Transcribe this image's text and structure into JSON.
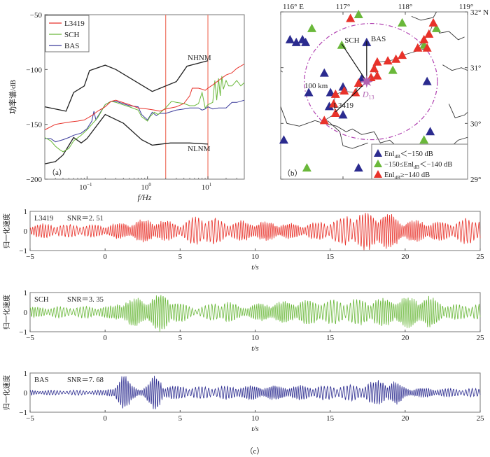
{
  "chart_data": [
    {
      "id": "a",
      "type": "line",
      "panel_label": "（a）",
      "xlabel": "f/Hz",
      "ylabel": "功率谱/dB",
      "xscale": "log",
      "xlim": [
        0.02,
        40
      ],
      "ylim": [
        -200,
        -50
      ],
      "yticks": [
        -50,
        -100,
        -150,
        -200
      ],
      "ytick_labels": [
        "−50",
        "−100",
        "−150",
        "−200"
      ],
      "xticks": [
        0.1,
        1,
        10
      ],
      "xtick_labels": [
        "10",
        "10",
        "10"
      ],
      "xtick_exps": [
        "−1",
        "0",
        "1"
      ],
      "legend": [
        "L3419",
        "SCH",
        "BAS"
      ],
      "legend_position": "top-left",
      "vlines": [
        2,
        10
      ],
      "annotations": [
        "NHNM",
        "NLNM"
      ],
      "series": [
        {
          "name": "L3419",
          "color": "#e8322a",
          "x": [
            0.02,
            0.03,
            0.05,
            0.07,
            0.09,
            0.12,
            0.15,
            0.2,
            0.25,
            0.3,
            0.5,
            0.7,
            1,
            1.3,
            1.6,
            2,
            3,
            4,
            5,
            5.5,
            7,
            8,
            9,
            10,
            12,
            15,
            20,
            25,
            30,
            40
          ],
          "y": [
            -155,
            -150,
            -148,
            -147,
            -146,
            -142,
            -138,
            -134,
            -129,
            -128,
            -132,
            -135,
            -136,
            -137,
            -138,
            -136,
            -134,
            -131,
            -124,
            -117,
            -117,
            -118,
            -119,
            -117,
            -114,
            -110,
            -105,
            -103,
            -99,
            -95
          ]
        },
        {
          "name": "SCH",
          "color": "#6ab83a",
          "x": [
            0.02,
            0.025,
            0.03,
            0.035,
            0.04,
            0.05,
            0.06,
            0.08,
            0.1,
            0.12,
            0.15,
            0.2,
            0.25,
            0.3,
            0.5,
            0.7,
            0.8,
            1,
            1.1,
            1.3,
            1.5,
            2,
            2.5,
            3,
            4,
            5,
            6,
            7,
            8,
            9,
            10,
            12,
            13,
            14,
            15,
            16,
            17,
            18,
            20,
            22,
            25,
            30,
            35,
            40
          ],
          "y": [
            -162,
            -165,
            -170,
            -173,
            -175,
            -172,
            -165,
            -160,
            -155,
            -150,
            -144,
            -132,
            -129,
            -130,
            -134,
            -137,
            -143,
            -147,
            -143,
            -139,
            -141,
            -135,
            -129,
            -130,
            -131,
            -133,
            -133,
            -131,
            -121,
            -135,
            -132,
            -130,
            -110,
            -128,
            -108,
            -124,
            -106,
            -118,
            -110,
            -115,
            -115,
            -110,
            -115,
            -112
          ]
        },
        {
          "name": "BAS",
          "color": "#3a3a9a",
          "x": [
            0.02,
            0.025,
            0.03,
            0.04,
            0.05,
            0.06,
            0.08,
            0.1,
            0.12,
            0.13,
            0.14,
            0.15,
            0.2,
            0.25,
            0.3,
            0.5,
            0.7,
            0.8,
            1,
            1.2,
            1.4,
            1.6,
            2,
            3,
            4,
            5,
            7,
            8,
            9,
            10,
            12,
            15,
            20,
            25,
            30,
            40
          ],
          "y": [
            -163,
            -163,
            -166,
            -164,
            -162,
            -160,
            -158,
            -154,
            -147,
            -138,
            -146,
            -143,
            -132,
            -129,
            -129,
            -133,
            -134,
            -141,
            -146,
            -139,
            -142,
            -140,
            -140,
            -137,
            -136,
            -135,
            -135,
            -137,
            -136,
            -134,
            -136,
            -135,
            -135,
            -130,
            -130,
            -128
          ]
        },
        {
          "name": "NHNM",
          "color": "#222222",
          "x": [
            0.02,
            0.045,
            0.06,
            0.09,
            0.11,
            0.2,
            0.3,
            1.2,
            3,
            4.5,
            10
          ],
          "y": [
            -134,
            -138,
            -121,
            -115,
            -101,
            -96,
            -100,
            -120,
            -111,
            -97,
            -92
          ]
        },
        {
          "name": "NLNM",
          "color": "#222222",
          "x": [
            0.02,
            0.03,
            0.04,
            0.06,
            0.08,
            0.1,
            0.2,
            0.4,
            0.8,
            1.2,
            2.4,
            5,
            10
          ],
          "y": [
            -186,
            -184,
            -178,
            -162,
            -167,
            -163,
            -141,
            -149,
            -164,
            -169,
            -167,
            -167,
            -168
          ]
        }
      ]
    },
    {
      "id": "b",
      "type": "scatter",
      "panel_label": "（b）",
      "xlim": [
        116,
        119
      ],
      "ylim": [
        29,
        32
      ],
      "xtick_labels": [
        "116° E",
        "117°",
        "118°",
        "119°"
      ],
      "ytick_labels": [
        "32° N",
        "31°",
        "30°",
        "29°"
      ],
      "epicenter": {
        "label": "D",
        "sub": "13",
        "lon": 117.38,
        "lat": 30.75,
        "color": "#b060b0"
      },
      "radius_label": "100 km",
      "circle_color": "#b040b0",
      "legend": [
        {
          "label_pre": "Enl",
          "sub": "dB",
          "label_post": "＜−150 dB",
          "color": "#2b2b8f"
        },
        {
          "label_pre": "−150≤Enl",
          "sub": "dB",
          "label_post": "＜−140 dB",
          "color": "#6ab83a"
        },
        {
          "label_pre": "Enl",
          "sub": "dB",
          "label_post": "≥−140 dB",
          "color": "#e8322a"
        }
      ],
      "legend_position": "bottom-right",
      "stations_blue": [
        [
          116.15,
          31.5
        ],
        [
          116.25,
          31.45
        ],
        [
          116.35,
          31.5
        ],
        [
          116.4,
          31.45
        ],
        [
          116.7,
          30.9
        ],
        [
          116.45,
          30.55
        ],
        [
          116.8,
          30.55
        ],
        [
          116.78,
          30.3
        ],
        [
          117.0,
          30.65
        ],
        [
          117.0,
          30.15
        ],
        [
          117.3,
          30.8
        ],
        [
          117.38,
          31.45
        ],
        [
          118.35,
          30.75
        ],
        [
          118.4,
          29.85
        ],
        [
          116.05,
          29.7
        ],
        [
          117.25,
          29.2
        ]
      ],
      "stations_green": [
        [
          116.5,
          31.7
        ],
        [
          117.25,
          31.95
        ],
        [
          117.95,
          31.8
        ],
        [
          118.5,
          31.7
        ],
        [
          116.98,
          31.4
        ],
        [
          117.8,
          30.95
        ],
        [
          118.3,
          31.4
        ],
        [
          118.3,
          29.7
        ],
        [
          116.42,
          29.2
        ]
      ],
      "stations_red": [
        [
          117.12,
          31.88
        ],
        [
          118.45,
          31.8
        ],
        [
          118.38,
          31.6
        ],
        [
          118.3,
          31.5
        ],
        [
          118.2,
          31.35
        ],
        [
          118.35,
          31.35
        ],
        [
          117.95,
          31.22
        ],
        [
          117.85,
          31.15
        ],
        [
          117.72,
          31.12
        ],
        [
          117.55,
          31.1
        ],
        [
          117.5,
          30.98
        ],
        [
          117.55,
          30.85
        ],
        [
          117.45,
          30.82
        ],
        [
          117.25,
          30.72
        ],
        [
          117.2,
          30.55
        ],
        [
          117.02,
          30.58
        ],
        [
          116.88,
          30.52
        ],
        [
          116.85,
          30.35
        ],
        [
          116.88,
          30.18
        ],
        [
          116.7,
          30.05
        ]
      ],
      "rays": [
        {
          "label": "BAS",
          "lon": 117.38,
          "lat": 31.45
        },
        {
          "label": "SCH",
          "lon": 116.98,
          "lat": 31.4
        },
        {
          "label": "L3419",
          "lon": 116.88,
          "lat": 30.18
        }
      ]
    },
    {
      "id": "c1",
      "type": "line",
      "station": "L3419",
      "snr_text": "SNR＝2. 51",
      "color": "#e8322a",
      "xlabel": "t/s",
      "ylabel": "归一化速度",
      "xlim": [
        -5,
        25
      ],
      "ylim": [
        -1,
        1
      ],
      "xticks": [
        -5,
        0,
        5,
        10,
        15,
        20,
        25
      ],
      "xtick_labels": [
        "−5",
        "0",
        "5",
        "10",
        "15",
        "20",
        "25"
      ],
      "yticks": [
        1,
        0,
        -1
      ],
      "ytick_labels": [
        "1",
        "0",
        "−1"
      ],
      "envelope": [
        [
          -5,
          0.35
        ],
        [
          0,
          0.3
        ],
        [
          1,
          0.4
        ],
        [
          3,
          0.6
        ],
        [
          5,
          0.4
        ],
        [
          6.5,
          0.85
        ],
        [
          8,
          0.45
        ],
        [
          10,
          0.5
        ],
        [
          13,
          0.35
        ],
        [
          15,
          0.5
        ],
        [
          16.5,
          0.9
        ],
        [
          18.5,
          1.0
        ],
        [
          20,
          0.55
        ],
        [
          23,
          0.45
        ],
        [
          25,
          0.75
        ]
      ]
    },
    {
      "id": "c2",
      "type": "line",
      "station": "SCH",
      "snr_text": "SNR＝3. 35",
      "color": "#6ab83a",
      "xlabel": "t/s",
      "ylabel": "归一化速度",
      "xlim": [
        -5,
        25
      ],
      "ylim": [
        -1,
        1
      ],
      "xticks": [
        -5,
        0,
        5,
        10,
        15,
        20,
        25
      ],
      "xtick_labels": [
        "−5",
        "0",
        "5",
        "10",
        "15",
        "20",
        "25"
      ],
      "yticks": [
        1,
        0,
        -1
      ],
      "ytick_labels": [
        "1",
        "0",
        "−1"
      ],
      "envelope": [
        [
          -5,
          0.25
        ],
        [
          0.5,
          0.3
        ],
        [
          1,
          0.6
        ],
        [
          3,
          0.75
        ],
        [
          4,
          1.0
        ],
        [
          5,
          0.5
        ],
        [
          6,
          0.2
        ],
        [
          8,
          0.6
        ],
        [
          9,
          0.3
        ],
        [
          11,
          0.5
        ],
        [
          13,
          0.6
        ],
        [
          16,
          0.6
        ],
        [
          18.5,
          0.7
        ],
        [
          21.5,
          0.8
        ],
        [
          23,
          0.35
        ],
        [
          25,
          0.4
        ]
      ]
    },
    {
      "id": "c3",
      "type": "line",
      "station": "BAS",
      "snr_text": "SNR＝7. 68",
      "color": "#2b2b8f",
      "xlabel": "t/s",
      "ylabel": "归一化速度",
      "xlim": [
        -5,
        25
      ],
      "ylim": [
        -1,
        1
      ],
      "xticks": [
        -5,
        0,
        5,
        10,
        15,
        20,
        25
      ],
      "xtick_labels": [
        "−5",
        "0",
        "5",
        "10",
        "15",
        "20",
        "25"
      ],
      "yticks": [
        1,
        0,
        -1
      ],
      "ytick_labels": [
        "1",
        "0",
        "−1"
      ],
      "panel_label": "（c）",
      "envelope": [
        [
          -5,
          0.12
        ],
        [
          0,
          0.12
        ],
        [
          0.5,
          0.3
        ],
        [
          1.2,
          0.95
        ],
        [
          1.8,
          0.4
        ],
        [
          2.5,
          0.2
        ],
        [
          3.5,
          1.0
        ],
        [
          4,
          0.35
        ],
        [
          6,
          0.3
        ],
        [
          10,
          0.35
        ],
        [
          15,
          0.35
        ],
        [
          17,
          0.4
        ],
        [
          18.5,
          0.65
        ],
        [
          19.5,
          0.55
        ],
        [
          20,
          0.25
        ],
        [
          23,
          0.2
        ],
        [
          25,
          0.2
        ]
      ]
    }
  ]
}
